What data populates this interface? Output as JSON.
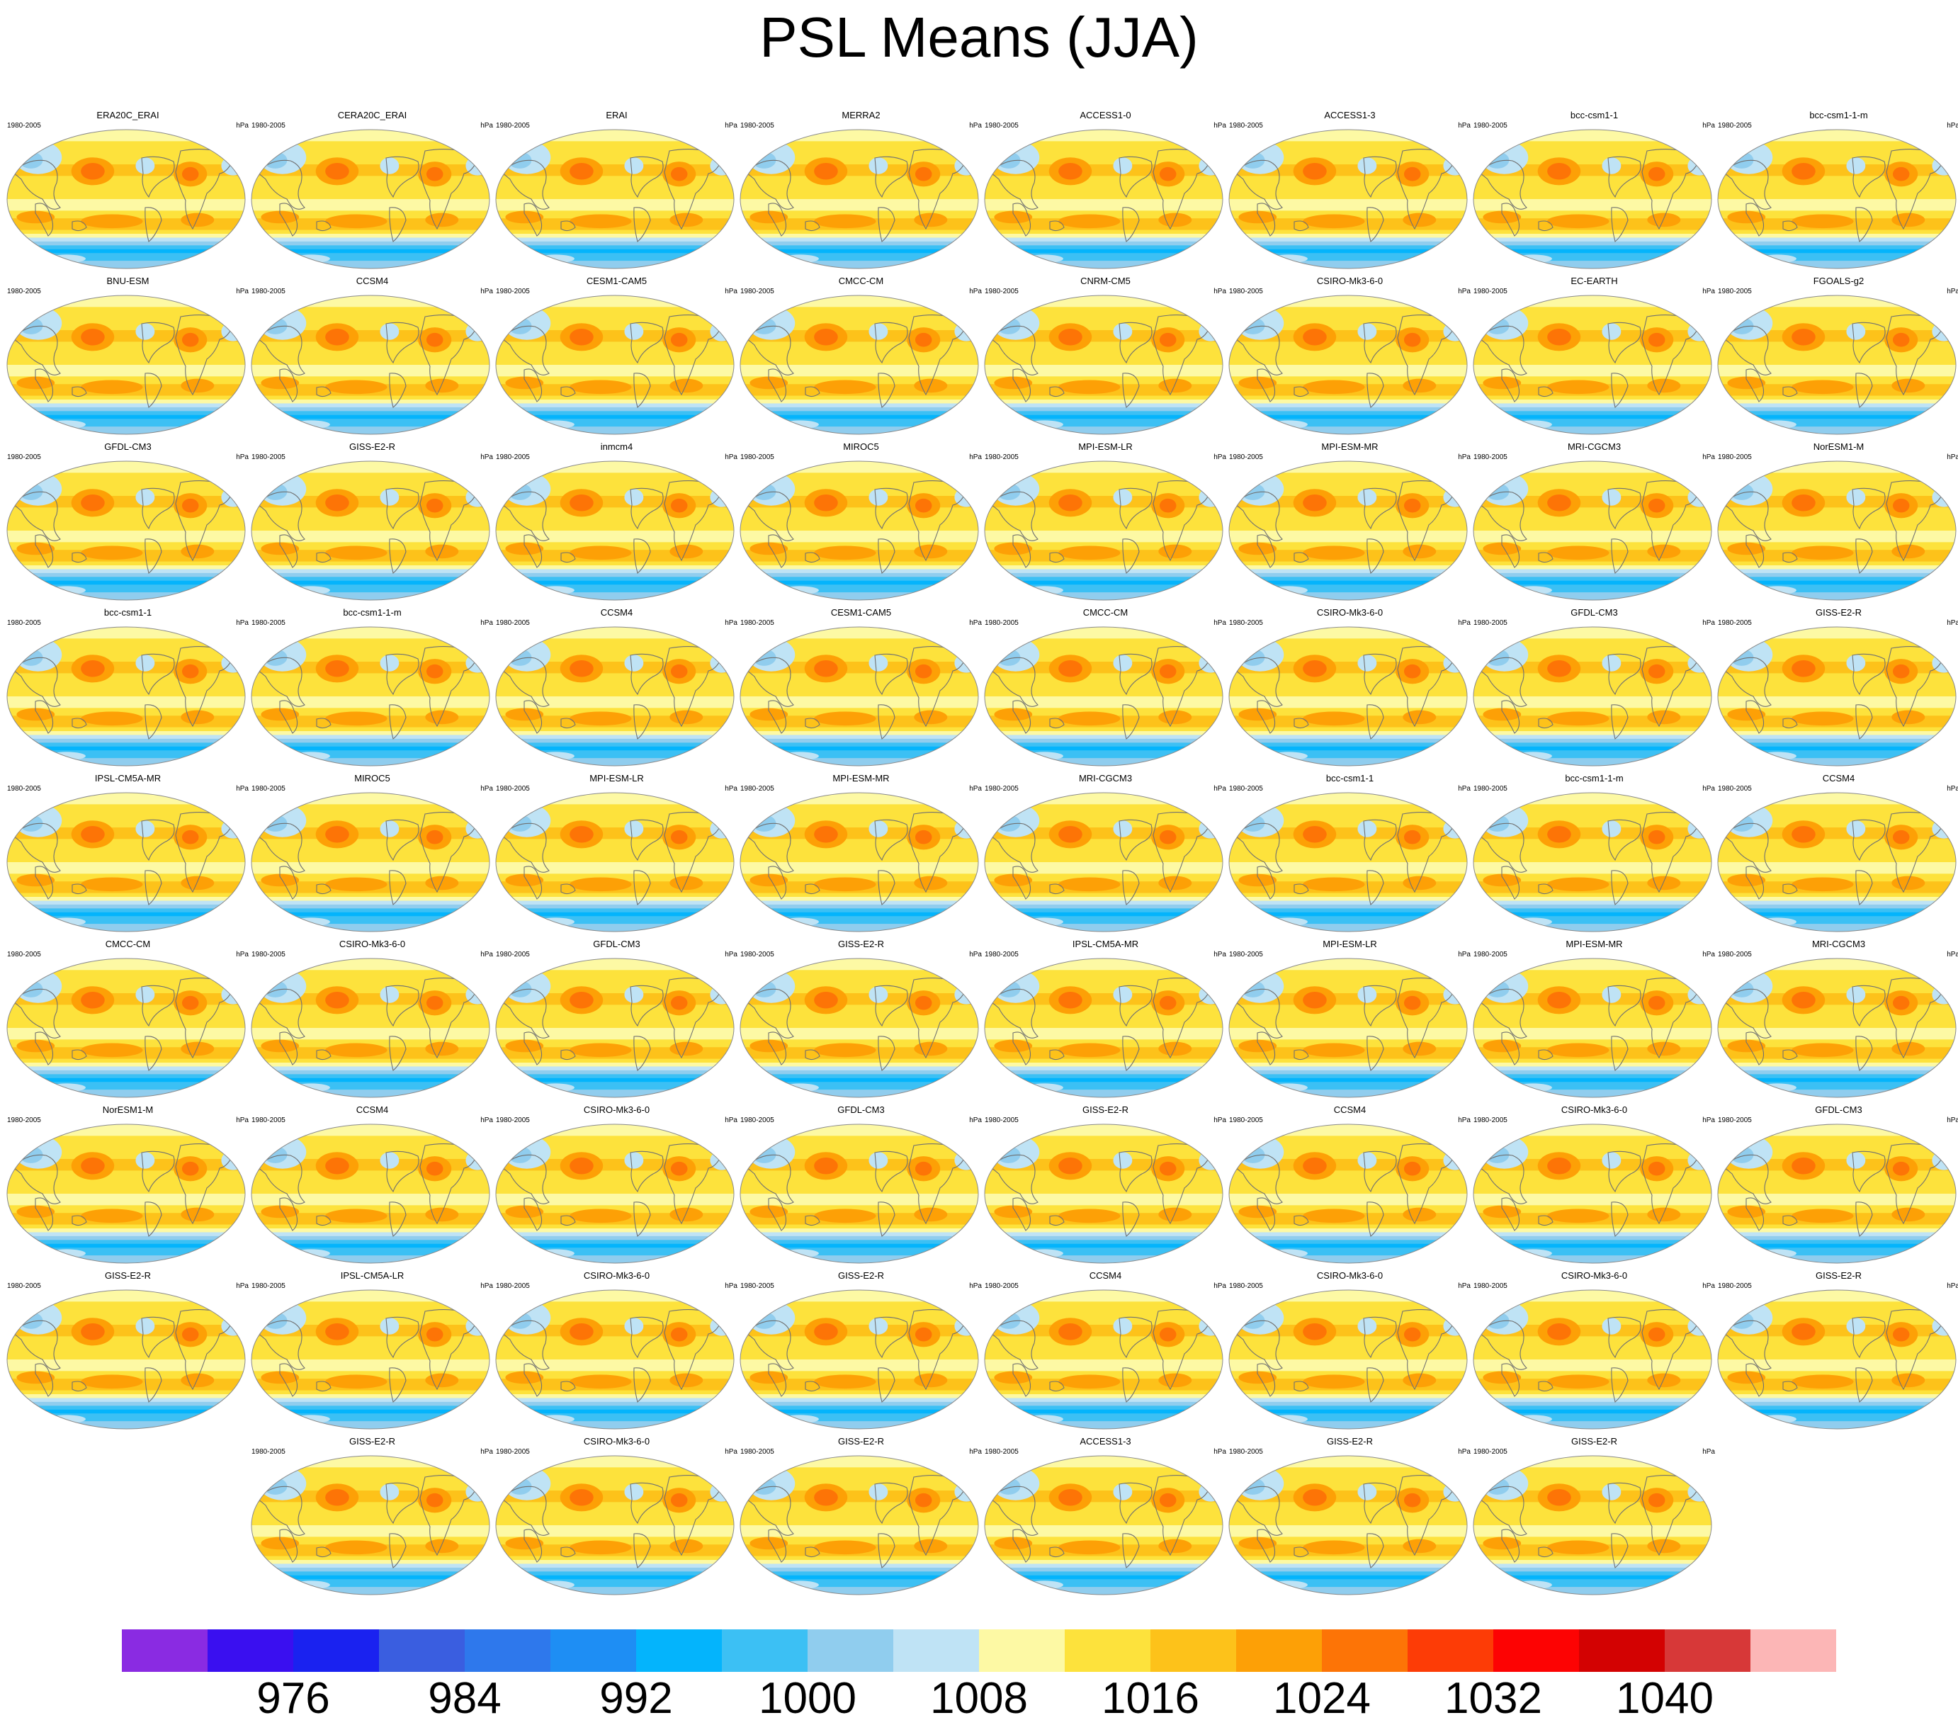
{
  "title": "PSL Means (JJA)",
  "period": "1980-2005",
  "units": "hPa",
  "chart_data": {
    "type": "heatmap",
    "projection": "robinson",
    "field": "sea level pressure",
    "panels": [
      [
        "ERA20C_ERAI",
        "CERA20C_ERAI",
        "ERAI",
        "MERRA2",
        "ACCESS1-0",
        "ACCESS1-3",
        "bcc-csm1-1",
        "bcc-csm1-1-m"
      ],
      [
        "BNU-ESM",
        "CCSM4",
        "CESM1-CAM5",
        "CMCC-CM",
        "CNRM-CM5",
        "CSIRO-Mk3-6-0",
        "EC-EARTH",
        "FGOALS-g2"
      ],
      [
        "GFDL-CM3",
        "GISS-E2-R",
        "inmcm4",
        "MIROC5",
        "MPI-ESM-LR",
        "MPI-ESM-MR",
        "MRI-CGCM3",
        "NorESM1-M"
      ],
      [
        "bcc-csm1-1",
        "bcc-csm1-1-m",
        "CCSM4",
        "CESM1-CAM5",
        "CMCC-CM",
        "CSIRO-Mk3-6-0",
        "GFDL-CM3",
        "GISS-E2-R"
      ],
      [
        "IPSL-CM5A-MR",
        "MIROC5",
        "MPI-ESM-LR",
        "MPI-ESM-MR",
        "MRI-CGCM3",
        "bcc-csm1-1",
        "bcc-csm1-1-m",
        "CCSM4"
      ],
      [
        "CMCC-CM",
        "CSIRO-Mk3-6-0",
        "GFDL-CM3",
        "GISS-E2-R",
        "IPSL-CM5A-MR",
        "MPI-ESM-LR",
        "MPI-ESM-MR",
        "MRI-CGCM3"
      ],
      [
        "NorESM1-M",
        "CCSM4",
        "CSIRO-Mk3-6-0",
        "GFDL-CM3",
        "GISS-E2-R",
        "CCSM4",
        "CSIRO-Mk3-6-0",
        "GFDL-CM3"
      ],
      [
        "GISS-E2-R",
        "IPSL-CM5A-LR",
        "CSIRO-Mk3-6-0",
        "GISS-E2-R",
        "CCSM4",
        "CSIRO-Mk3-6-0",
        "CSIRO-Mk3-6-0",
        "GISS-E2-R"
      ],
      [
        "GISS-E2-R",
        "CSIRO-Mk3-6-0",
        "GISS-E2-R",
        "ACCESS1-3",
        "GISS-E2-R",
        "GISS-E2-R"
      ]
    ],
    "colorbar": {
      "colors": [
        "#8a2be2",
        "#3a0ff0",
        "#1a22f0",
        "#3a5ee0",
        "#2e78ec",
        "#1e8ef4",
        "#04b4fc",
        "#3cc0f4",
        "#90cdee",
        "#bfe3f5",
        "#fdf9a4",
        "#fde23c",
        "#fdc21a",
        "#fda006",
        "#fd7406",
        "#fd3c06",
        "#fd0303",
        "#d30202",
        "#d73838",
        "#fcb6b6"
      ],
      "tick_labels": [
        "976",
        "984",
        "992",
        "1000",
        "1008",
        "1016",
        "1024",
        "1032",
        "1040"
      ],
      "tick_values": [
        976,
        984,
        992,
        1000,
        1008,
        1016,
        1024,
        1032,
        1040
      ],
      "range": [
        968,
        1048
      ]
    }
  }
}
